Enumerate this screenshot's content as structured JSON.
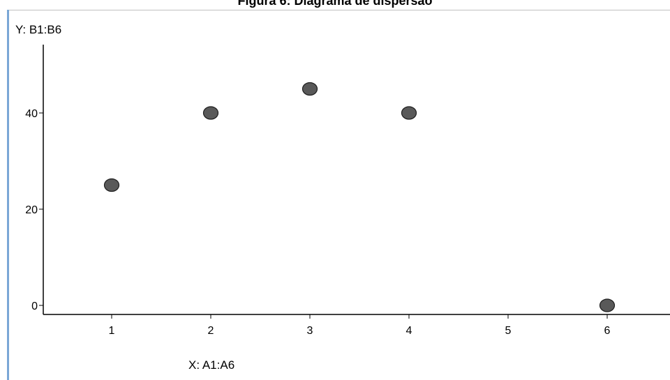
{
  "chart_data": {
    "type": "scatter",
    "title": "Figura 6: Diagrama de dispersão",
    "ylabel": "Y:  B1:B6",
    "xlabel": "X:  A1:A6",
    "x_ticks": [
      1,
      2,
      3,
      4,
      5,
      6
    ],
    "y_ticks": [
      0,
      20,
      40
    ],
    "xlim": [
      0.35,
      6.65
    ],
    "ylim": [
      -2.5,
      54
    ],
    "grid": false,
    "series": [
      {
        "x": [
          1,
          2,
          3,
          4,
          6
        ],
        "y": [
          25,
          40,
          45,
          40,
          0
        ]
      }
    ],
    "colors": {
      "point_fill": "#595959",
      "point_stroke": "#1e1e1e",
      "axis": "#000000"
    }
  }
}
